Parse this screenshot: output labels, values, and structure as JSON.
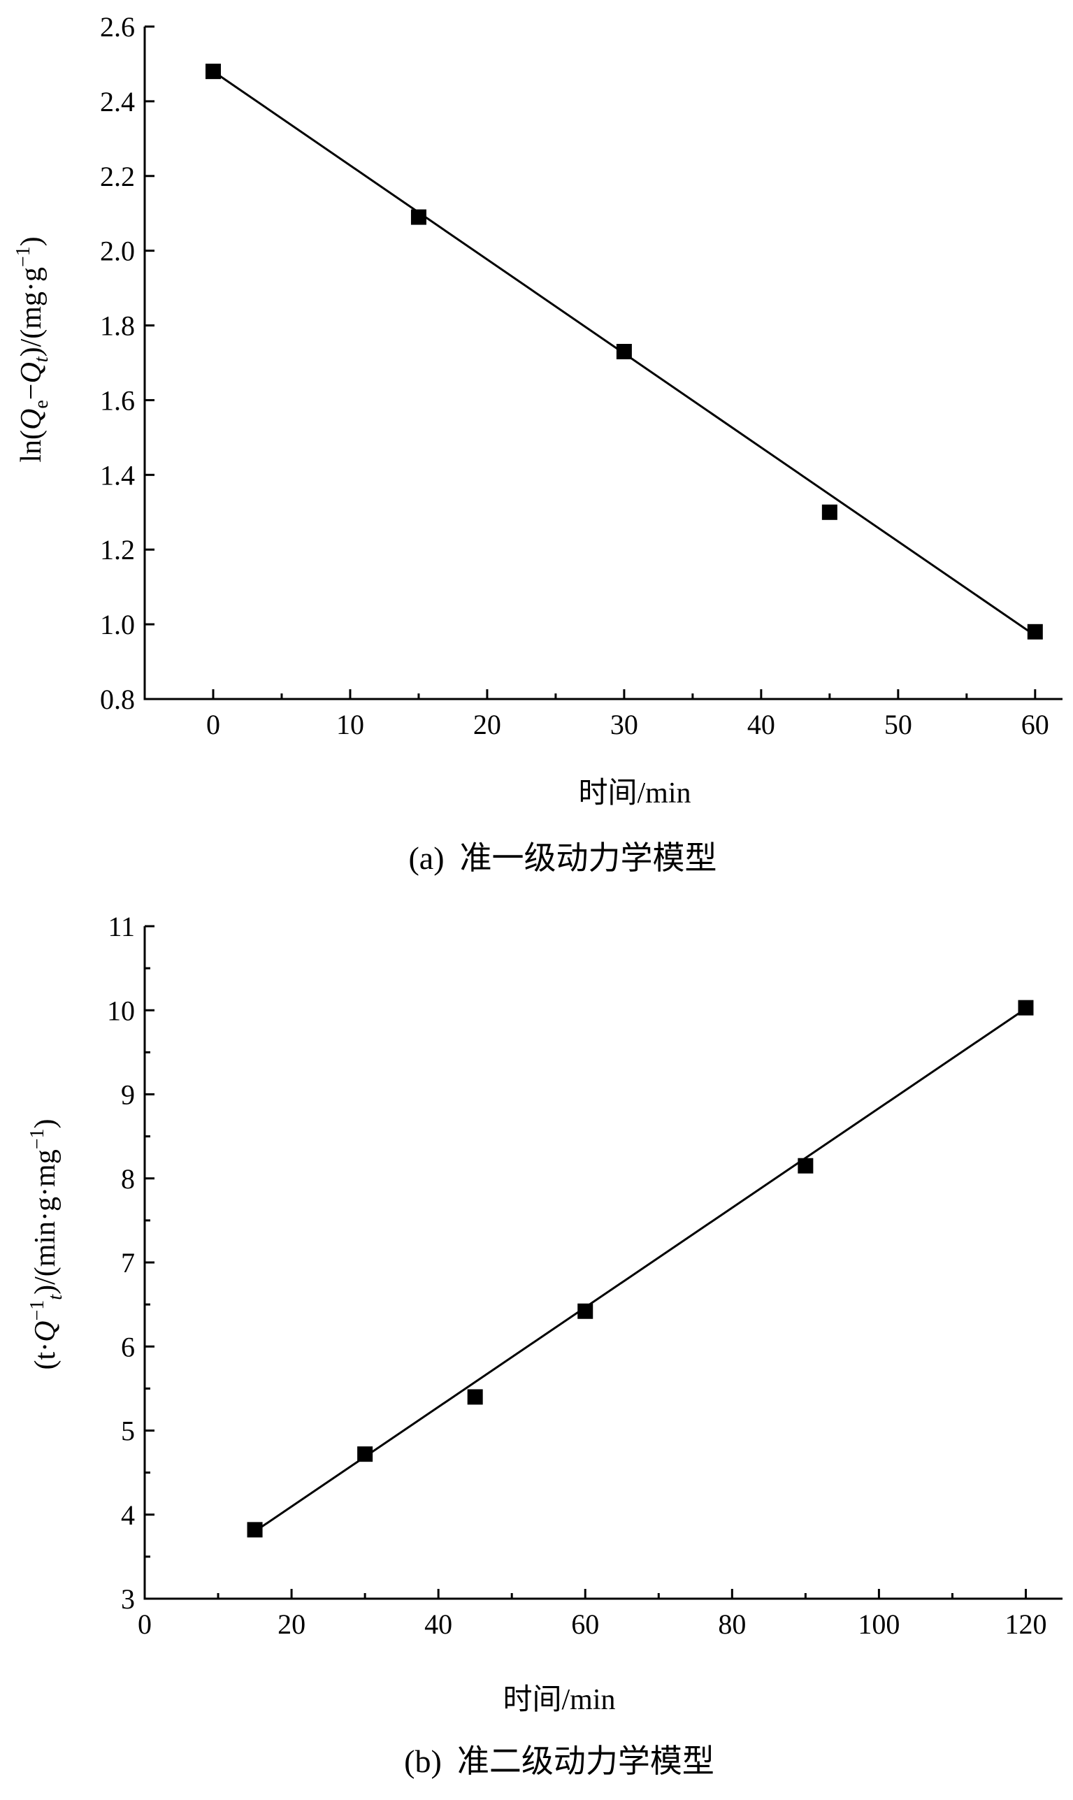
{
  "chart_data": [
    {
      "type": "scatter",
      "title": "",
      "caption_prefix": "(a)",
      "caption_text": "准一级动力学模型",
      "xlabel_main": "时间",
      "xlabel_unit": "/min",
      "ylabel": {
        "open": "ln(",
        "q": "Q",
        "sub_e": "e",
        "minus": "−",
        "q2": "Q",
        "sub_t": "t",
        "close_unit": ")/(mg·g",
        "sup": "−1",
        "end": ")"
      },
      "xlim": [
        -5,
        62
      ],
      "ylim": [
        0.8,
        2.6
      ],
      "xticks": [
        0,
        10,
        20,
        30,
        40,
        50,
        60
      ],
      "yticks": [
        0.8,
        1.0,
        1.2,
        1.4,
        1.6,
        1.8,
        2.0,
        2.2,
        2.4,
        2.6
      ],
      "xtick_labels": [
        "0",
        "10",
        "20",
        "30",
        "40",
        "50",
        "60"
      ],
      "ytick_labels": [
        "0.8",
        "1.0",
        "1.2",
        "1.4",
        "1.6",
        "1.8",
        "2.0",
        "2.2",
        "2.4",
        "2.6"
      ],
      "points": [
        {
          "x": 0,
          "y": 2.48
        },
        {
          "x": 15,
          "y": 2.09
        },
        {
          "x": 30,
          "y": 1.73
        },
        {
          "x": 45,
          "y": 1.3
        },
        {
          "x": 60,
          "y": 0.98
        }
      ],
      "fit_line": {
        "x": [
          0,
          60
        ],
        "y": [
          2.48,
          0.97
        ]
      },
      "grid": false,
      "legend": "none"
    },
    {
      "type": "scatter",
      "title": "",
      "caption_prefix": "(b)",
      "caption_text": "准二级动力学模型",
      "xlabel_main": "时间",
      "xlabel_unit": "/min",
      "ylabel": {
        "open": "(t·",
        "q": "Q",
        "sup1": "−1",
        "sub_t": "t",
        "close_unit": ")/(min·g·mg",
        "sup": "−1",
        "end": ")"
      },
      "xlim": [
        0,
        125
      ],
      "ylim": [
        3,
        11
      ],
      "xticks": [
        0,
        20,
        40,
        60,
        80,
        100,
        120
      ],
      "yticks": [
        3,
        4,
        5,
        6,
        7,
        8,
        9,
        10,
        11
      ],
      "xtick_labels": [
        "0",
        "20",
        "40",
        "60",
        "80",
        "100",
        "120"
      ],
      "ytick_labels": [
        "3",
        "4",
        "5",
        "6",
        "7",
        "8",
        "9",
        "10",
        "11"
      ],
      "points": [
        {
          "x": 15,
          "y": 3.82
        },
        {
          "x": 30,
          "y": 4.72
        },
        {
          "x": 45,
          "y": 5.4
        },
        {
          "x": 60,
          "y": 6.42
        },
        {
          "x": 90,
          "y": 8.15
        },
        {
          "x": 120,
          "y": 10.03
        }
      ],
      "fit_line": {
        "x": [
          15,
          120
        ],
        "y": [
          3.8,
          10.02
        ]
      },
      "grid": false,
      "legend": "none"
    }
  ]
}
